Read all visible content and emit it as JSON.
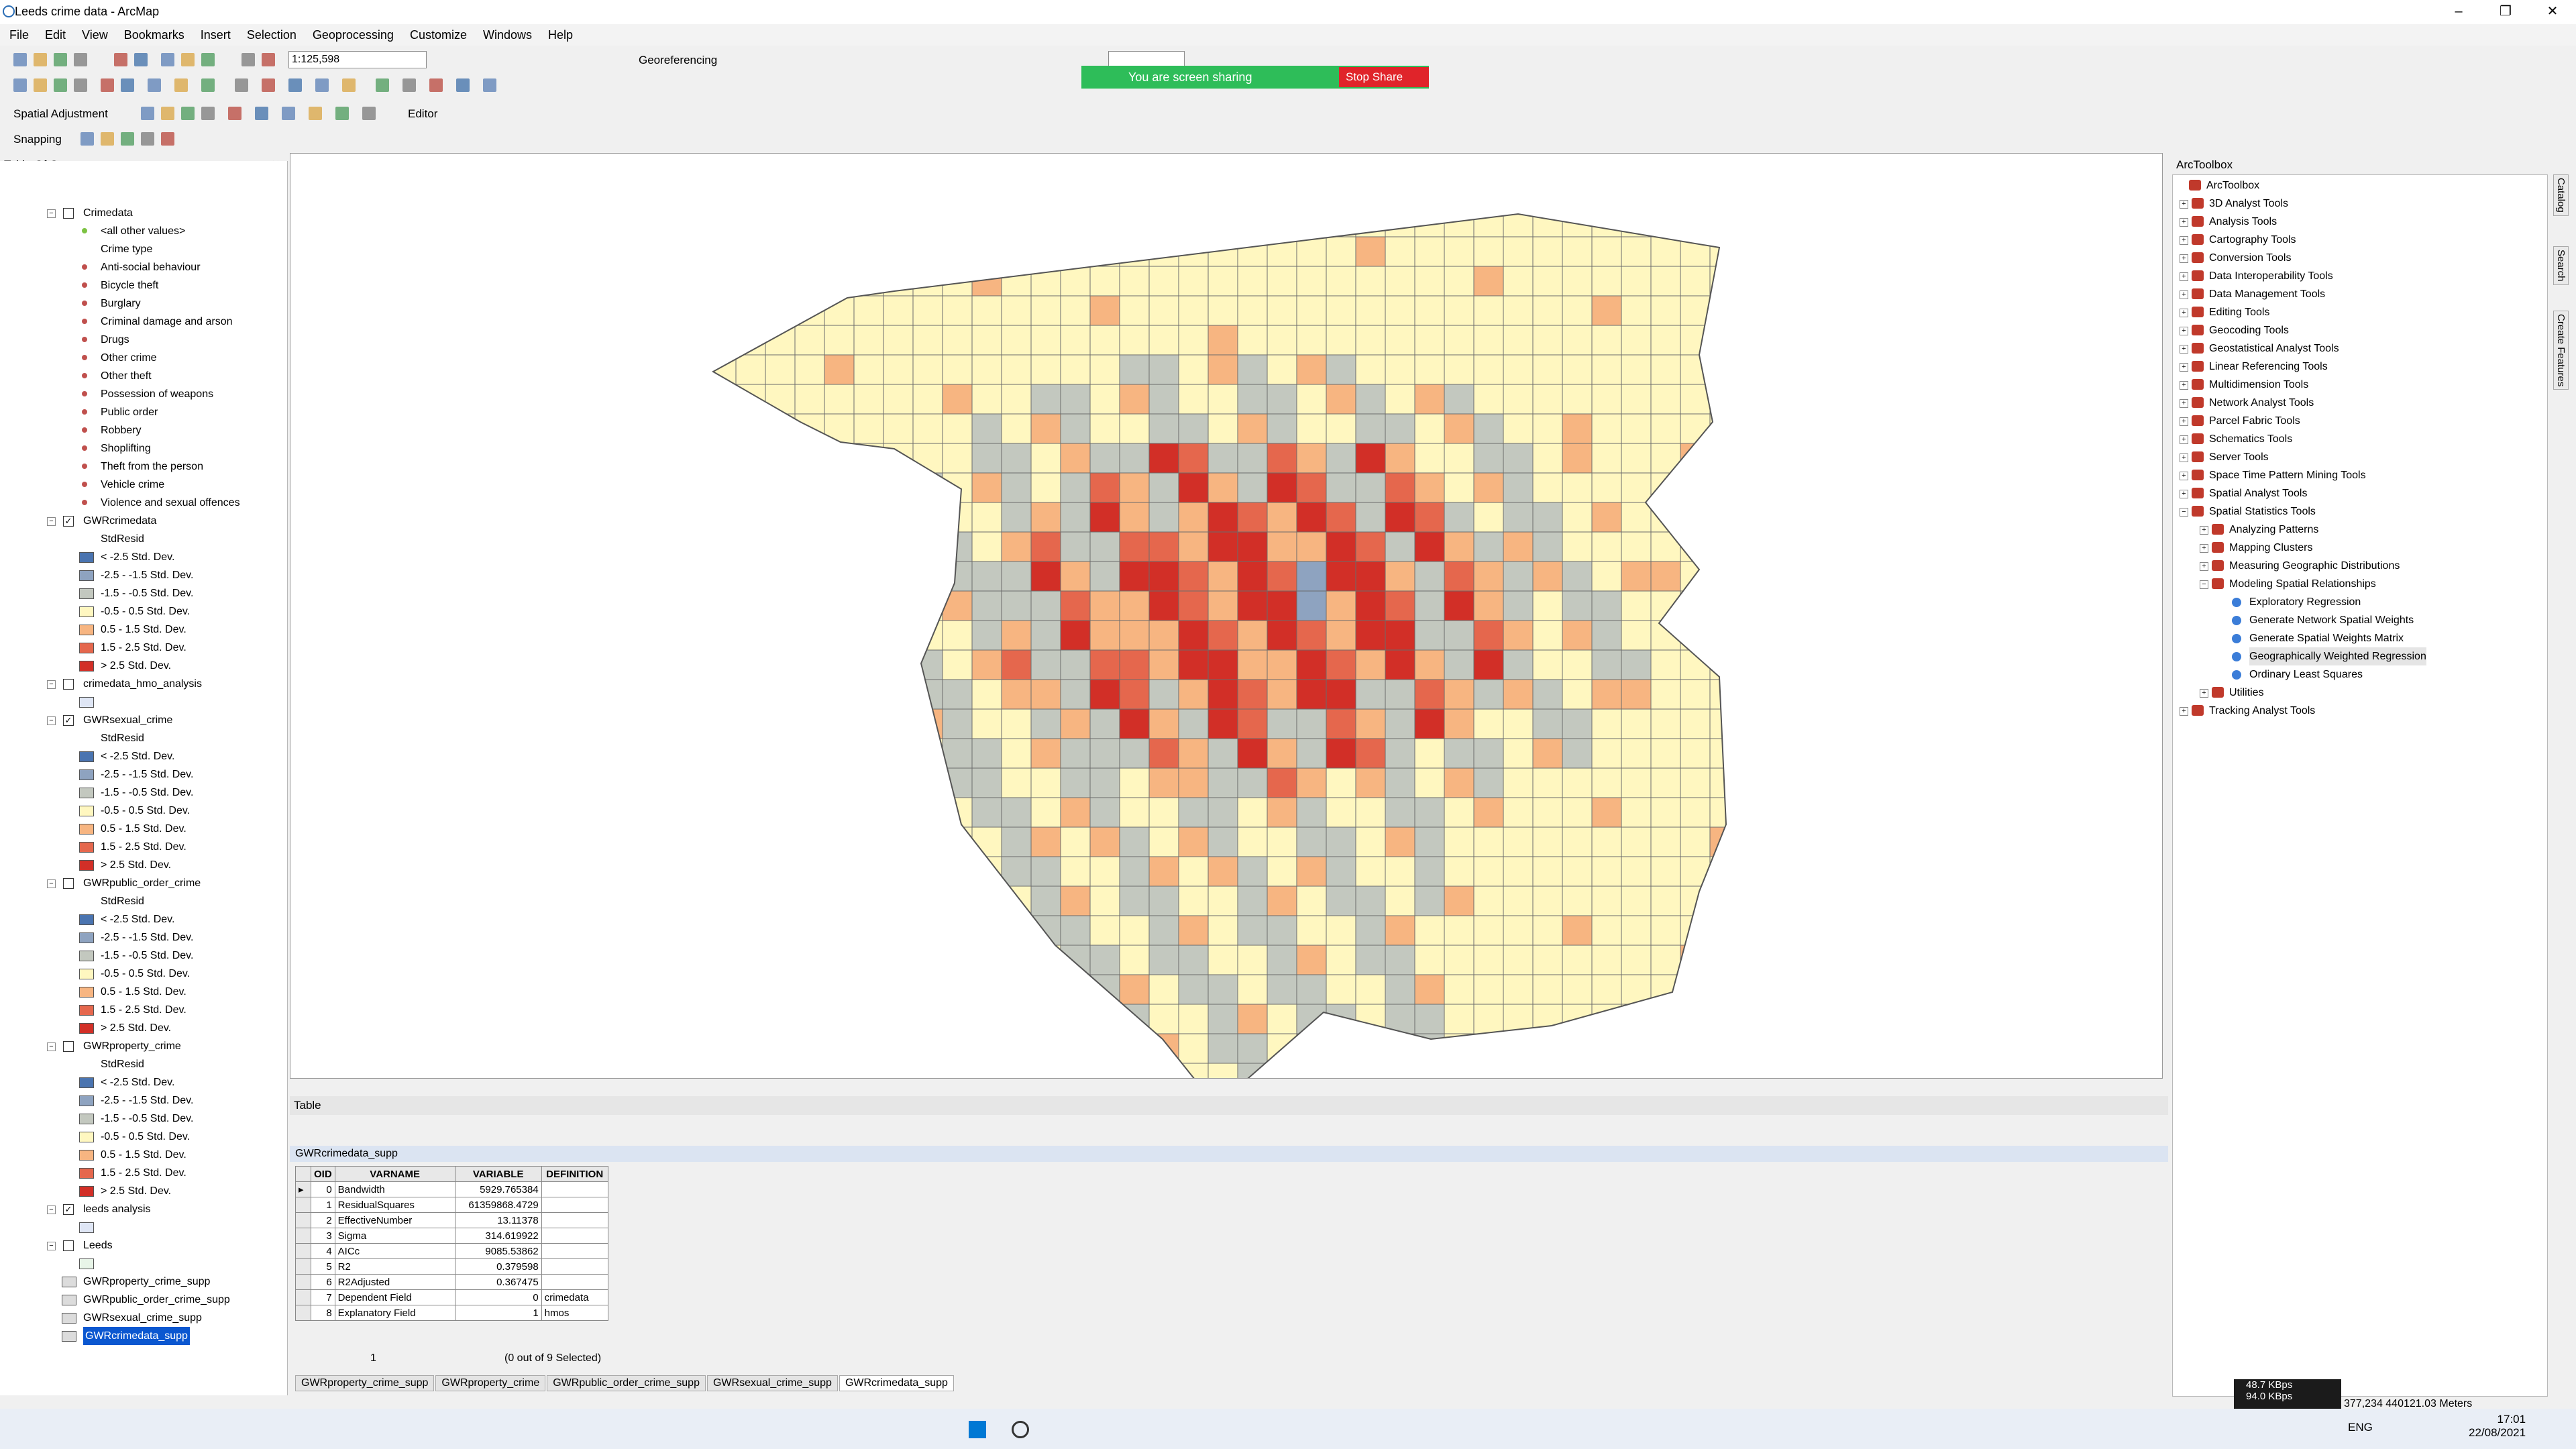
{
  "window": {
    "title": "Leeds crime data - ArcMap"
  },
  "menu": [
    "File",
    "Edit",
    "View",
    "Bookmarks",
    "Insert",
    "Selection",
    "Geoprocessing",
    "Customize",
    "Windows",
    "Help"
  ],
  "toolbar": {
    "scale": "1:125,598",
    "georeferencing": "Georeferencing",
    "spatial_adjustment": "Spatial Adjustment",
    "editor": "Editor",
    "snapping": "Snapping"
  },
  "share_banner": {
    "text": "You are screen sharing",
    "stop": "Stop Share"
  },
  "toc": {
    "title": "Table Of Contents",
    "lines": [
      {
        "t": "Crimedata",
        "kind": "layer",
        "checked": false
      },
      {
        "t": "<all other values>",
        "kind": "dot",
        "color": "#7cc242"
      },
      {
        "t": "Crime type",
        "kind": "sub"
      },
      {
        "t": "Anti-social behaviour",
        "kind": "dot",
        "color": "#c0504d"
      },
      {
        "t": "Bicycle theft",
        "kind": "dot",
        "color": "#c0504d"
      },
      {
        "t": "Burglary",
        "kind": "dot",
        "color": "#c0504d"
      },
      {
        "t": "Criminal damage and arson",
        "kind": "dot",
        "color": "#c0504d"
      },
      {
        "t": "Drugs",
        "kind": "dot",
        "color": "#c0504d"
      },
      {
        "t": "Other crime",
        "kind": "dot",
        "color": "#c0504d"
      },
      {
        "t": "Other theft",
        "kind": "dot",
        "color": "#c0504d"
      },
      {
        "t": "Possession of weapons",
        "kind": "dot",
        "color": "#c0504d"
      },
      {
        "t": "Public order",
        "kind": "dot",
        "color": "#c0504d"
      },
      {
        "t": "Robbery",
        "kind": "dot",
        "color": "#c0504d"
      },
      {
        "t": "Shoplifting",
        "kind": "dot",
        "color": "#c0504d"
      },
      {
        "t": "Theft from the person",
        "kind": "dot",
        "color": "#c0504d"
      },
      {
        "t": "Vehicle crime",
        "kind": "dot",
        "color": "#c0504d"
      },
      {
        "t": "Violence and sexual offences",
        "kind": "dot",
        "color": "#c0504d"
      },
      {
        "t": "GWRcrimedata",
        "kind": "layer",
        "checked": true
      },
      {
        "t": "StdResid",
        "kind": "sub"
      },
      {
        "t": "< -2.5 Std. Dev.",
        "kind": "sw",
        "color": "#4a74b0"
      },
      {
        "t": "-2.5 - -1.5 Std. Dev.",
        "kind": "sw",
        "color": "#8ea3c0"
      },
      {
        "t": "-1.5 - -0.5 Std. Dev.",
        "kind": "sw",
        "color": "#c3c8bf"
      },
      {
        "t": "-0.5 - 0.5 Std. Dev.",
        "kind": "sw",
        "color": "#fff7c0"
      },
      {
        "t": "0.5 - 1.5 Std. Dev.",
        "kind": "sw",
        "color": "#f7b581"
      },
      {
        "t": "1.5 - 2.5 Std. Dev.",
        "kind": "sw",
        "color": "#e5674d"
      },
      {
        "t": "> 2.5 Std. Dev.",
        "kind": "sw",
        "color": "#d22f27"
      },
      {
        "t": "crimedata_hmo_analysis",
        "kind": "layer",
        "checked": false
      },
      {
        "t": "",
        "kind": "sw",
        "color": "#dfe6f5"
      },
      {
        "t": "GWRsexual_crime",
        "kind": "layer",
        "checked": true
      },
      {
        "t": "StdResid",
        "kind": "sub"
      },
      {
        "t": "< -2.5 Std. Dev.",
        "kind": "sw",
        "color": "#4a74b0"
      },
      {
        "t": "-2.5 - -1.5 Std. Dev.",
        "kind": "sw",
        "color": "#8ea3c0"
      },
      {
        "t": "-1.5 - -0.5 Std. Dev.",
        "kind": "sw",
        "color": "#c3c8bf"
      },
      {
        "t": "-0.5 - 0.5 Std. Dev.",
        "kind": "sw",
        "color": "#fff7c0"
      },
      {
        "t": "0.5 - 1.5 Std. Dev.",
        "kind": "sw",
        "color": "#f7b581"
      },
      {
        "t": "1.5 - 2.5 Std. Dev.",
        "kind": "sw",
        "color": "#e5674d"
      },
      {
        "t": "> 2.5 Std. Dev.",
        "kind": "sw",
        "color": "#d22f27"
      },
      {
        "t": "GWRpublic_order_crime",
        "kind": "layer",
        "checked": false
      },
      {
        "t": "StdResid",
        "kind": "sub"
      },
      {
        "t": "< -2.5 Std. Dev.",
        "kind": "sw",
        "color": "#4a74b0"
      },
      {
        "t": "-2.5 - -1.5 Std. Dev.",
        "kind": "sw",
        "color": "#8ea3c0"
      },
      {
        "t": "-1.5 - -0.5 Std. Dev.",
        "kind": "sw",
        "color": "#c3c8bf"
      },
      {
        "t": "-0.5 - 0.5 Std. Dev.",
        "kind": "sw",
        "color": "#fff7c0"
      },
      {
        "t": "0.5 - 1.5 Std. Dev.",
        "kind": "sw",
        "color": "#f7b581"
      },
      {
        "t": "1.5 - 2.5 Std. Dev.",
        "kind": "sw",
        "color": "#e5674d"
      },
      {
        "t": "> 2.5 Std. Dev.",
        "kind": "sw",
        "color": "#d22f27"
      },
      {
        "t": "GWRproperty_crime",
        "kind": "layer",
        "checked": false
      },
      {
        "t": "StdResid",
        "kind": "sub"
      },
      {
        "t": "< -2.5 Std. Dev.",
        "kind": "sw",
        "color": "#4a74b0"
      },
      {
        "t": "-2.5 - -1.5 Std. Dev.",
        "kind": "sw",
        "color": "#8ea3c0"
      },
      {
        "t": "-1.5 - -0.5 Std. Dev.",
        "kind": "sw",
        "color": "#c3c8bf"
      },
      {
        "t": "-0.5 - 0.5 Std. Dev.",
        "kind": "sw",
        "color": "#fff7c0"
      },
      {
        "t": "0.5 - 1.5 Std. Dev.",
        "kind": "sw",
        "color": "#f7b581"
      },
      {
        "t": "1.5 - 2.5 Std. Dev.",
        "kind": "sw",
        "color": "#e5674d"
      },
      {
        "t": "> 2.5 Std. Dev.",
        "kind": "sw",
        "color": "#d22f27"
      },
      {
        "t": "leeds analysis",
        "kind": "layer",
        "checked": true
      },
      {
        "t": "",
        "kind": "sw",
        "color": "#dfe6f5"
      },
      {
        "t": "Leeds",
        "kind": "layer",
        "checked": false
      },
      {
        "t": "",
        "kind": "sw",
        "color": "#e8f5e8"
      },
      {
        "t": "GWRproperty_crime_supp",
        "kind": "tbl"
      },
      {
        "t": "GWRpublic_order_crime_supp",
        "kind": "tbl"
      },
      {
        "t": "GWRsexual_crime_supp",
        "kind": "tbl"
      },
      {
        "t": "GWRcrimedata_supp",
        "kind": "tbl",
        "selected": true
      }
    ]
  },
  "table": {
    "pane_title": "Table",
    "name": "GWRcrimedata_supp",
    "headers": [
      "OID",
      "VARNAME",
      "VARIABLE",
      "DEFINITION"
    ],
    "rows": [
      [
        "0",
        "Bandwidth",
        "5929.765384",
        ""
      ],
      [
        "1",
        "ResidualSquares",
        "61359868.4729",
        ""
      ],
      [
        "2",
        "EffectiveNumber",
        "13.11378",
        ""
      ],
      [
        "3",
        "Sigma",
        "314.619922",
        ""
      ],
      [
        "4",
        "AICc",
        "9085.53862",
        ""
      ],
      [
        "5",
        "R2",
        "0.379598",
        ""
      ],
      [
        "6",
        "R2Adjusted",
        "0.367475",
        ""
      ],
      [
        "7",
        "Dependent Field",
        "0",
        "crimedata"
      ],
      [
        "8",
        "Explanatory Field",
        "1",
        "hmos"
      ]
    ],
    "record": "1",
    "selection": "(0 out of 9 Selected)",
    "tabs": [
      "GWRproperty_crime_supp",
      "GWRproperty_crime",
      "GWRpublic_order_crime_supp",
      "GWRsexual_crime_supp",
      "GWRcrimedata_supp"
    ]
  },
  "toolbox": {
    "title": "ArcToolbox",
    "items": [
      {
        "t": "ArcToolbox",
        "lvl": 0
      },
      {
        "t": "3D Analyst Tools",
        "lvl": 1
      },
      {
        "t": "Analysis Tools",
        "lvl": 1
      },
      {
        "t": "Cartography Tools",
        "lvl": 1
      },
      {
        "t": "Conversion Tools",
        "lvl": 1
      },
      {
        "t": "Data Interoperability Tools",
        "lvl": 1
      },
      {
        "t": "Data Management Tools",
        "lvl": 1
      },
      {
        "t": "Editing Tools",
        "lvl": 1
      },
      {
        "t": "Geocoding Tools",
        "lvl": 1
      },
      {
        "t": "Geostatistical Analyst Tools",
        "lvl": 1
      },
      {
        "t": "Linear Referencing Tools",
        "lvl": 1
      },
      {
        "t": "Multidimension Tools",
        "lvl": 1
      },
      {
        "t": "Network Analyst Tools",
        "lvl": 1
      },
      {
        "t": "Parcel Fabric Tools",
        "lvl": 1
      },
      {
        "t": "Schematics Tools",
        "lvl": 1
      },
      {
        "t": "Server Tools",
        "lvl": 1
      },
      {
        "t": "Space Time Pattern Mining Tools",
        "lvl": 1
      },
      {
        "t": "Spatial Analyst Tools",
        "lvl": 1
      },
      {
        "t": "Spatial Statistics Tools",
        "lvl": 1
      },
      {
        "t": "Analyzing Patterns",
        "lvl": 2
      },
      {
        "t": "Mapping Clusters",
        "lvl": 2
      },
      {
        "t": "Measuring Geographic Distributions",
        "lvl": 2
      },
      {
        "t": "Modeling Spatial Relationships",
        "lvl": 2
      },
      {
        "t": "Exploratory Regression",
        "lvl": 3
      },
      {
        "t": "Generate Network Spatial Weights",
        "lvl": 3
      },
      {
        "t": "Generate Spatial Weights Matrix",
        "lvl": 3
      },
      {
        "t": "Geographically Weighted Regression",
        "lvl": 3
      },
      {
        "t": "Ordinary Least Squares",
        "lvl": 3
      },
      {
        "t": "Utilities",
        "lvl": 2
      },
      {
        "t": "Tracking Analyst Tools",
        "lvl": 1
      }
    ],
    "side_tabs": [
      "Catalog",
      "Search",
      "Create Features"
    ]
  },
  "status": {
    "coords": "377,234  440121.03 Meters",
    "net_up": "48.7 KBps",
    "net_down": "94.0 KBps"
  },
  "taskbar": {
    "lang": "ENG",
    "time": "17:01",
    "date": "22/08/2021"
  },
  "map_colors": {
    "neutral": "#fff7c0",
    "grey": "#c3c8bf",
    "blue": "#8ea3c0",
    "light": "#f7b581",
    "mid": "#e5674d",
    "high": "#d22f27"
  }
}
